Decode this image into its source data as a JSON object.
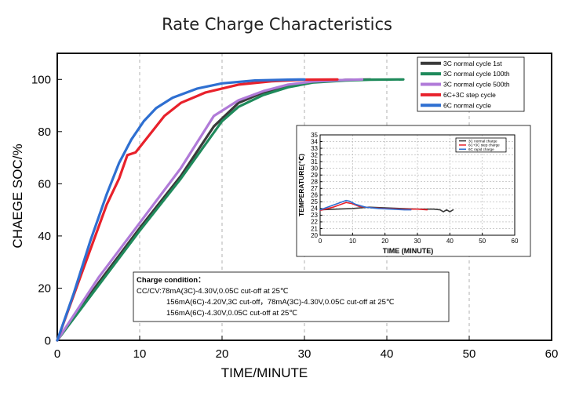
{
  "chart_data": [
    {
      "type": "line",
      "title": "Rate Charge Characteristics",
      "xlabel": "TIME/MINUTE",
      "ylabel": "CHAEGE SOC/%",
      "xlim": [
        0,
        60
      ],
      "ylim": [
        0,
        110
      ],
      "xticks": [
        0,
        10,
        20,
        30,
        40,
        50,
        60
      ],
      "yticks": [
        0,
        20,
        40,
        60,
        80,
        100
      ],
      "grid": "dashed",
      "legend_position": "top-right",
      "series": [
        {
          "name": "3C normal cycle 1st",
          "color": "#3a3a3a",
          "x": [
            0,
            5,
            10,
            15,
            19,
            22,
            25,
            28,
            31,
            35,
            38
          ],
          "y": [
            0,
            22,
            43,
            63,
            82,
            91,
            95,
            97.5,
            99,
            99.8,
            100
          ]
        },
        {
          "name": "3C normal cycle 100th",
          "color": "#1f8a5b",
          "x": [
            0,
            5,
            10,
            15,
            20,
            22,
            25,
            28,
            31,
            35,
            38,
            42
          ],
          "y": [
            0,
            21,
            42,
            62,
            84,
            89.5,
            94,
            97,
            98.8,
            99.6,
            99.9,
            100
          ]
        },
        {
          "name": "3C normal cycle 500th",
          "color": "#b07ad8",
          "x": [
            0,
            5,
            10,
            15,
            19,
            22,
            25,
            28,
            31,
            35,
            37
          ],
          "y": [
            0,
            24,
            45,
            66,
            86,
            92,
            95.5,
            98,
            99.2,
            99.8,
            100
          ]
        },
        {
          "name": "6C+3C step cycle",
          "color": "#e8212b",
          "x": [
            0,
            3,
            6,
            7.5,
            8.5,
            9.5,
            11,
            13,
            15,
            18,
            22,
            26,
            30,
            34
          ],
          "y": [
            0,
            26,
            52,
            62,
            71,
            72,
            78,
            86,
            91,
            95,
            98,
            99.3,
            99.9,
            100
          ]
        },
        {
          "name": "6C normal cycle",
          "color": "#2e6fd1",
          "x": [
            0,
            2,
            4,
            6,
            7.5,
            9,
            10.5,
            12,
            14,
            17,
            20,
            24,
            28,
            30
          ],
          "y": [
            0,
            18,
            38,
            56,
            68,
            77,
            84,
            89,
            93,
            96.5,
            98.5,
            99.6,
            99.9,
            100
          ]
        }
      ],
      "annotation": {
        "heading": "Charge condition：",
        "lines": [
          "CC/CV:78mA(3C)-4.30V,0.05C cut-off at 25℃",
          "156mA(6C)-4.20V,3C cut-off，78mA(3C)-4.30V,0.05C cut-off at 25℃",
          "156mA(6C)-4.30V,0.05C cut-off at 25℃"
        ]
      }
    },
    {
      "type": "line",
      "title": "",
      "xlabel": "TIME (MINUTE)",
      "ylabel": "TEMPERATURE(℃)",
      "xlim": [
        0,
        60
      ],
      "ylim": [
        20,
        35
      ],
      "xticks": [
        0,
        10,
        20,
        30,
        40,
        50,
        60
      ],
      "yticks": [
        20,
        21,
        22,
        23,
        24,
        25,
        26,
        27,
        28,
        29,
        30,
        31,
        32,
        33,
        34,
        35
      ],
      "grid": "dashed",
      "legend_position": "top-left",
      "series": [
        {
          "name": "3C normal charge",
          "color": "#3a3a3a",
          "x": [
            0,
            5,
            10,
            15,
            20,
            25,
            30,
            35,
            37,
            38,
            39,
            40,
            41
          ],
          "y": [
            23.8,
            23.9,
            24.0,
            24.2,
            24.1,
            24.0,
            23.9,
            23.9,
            23.8,
            23.5,
            23.8,
            23.5,
            23.8
          ]
        },
        {
          "name": "6C+3C step charge",
          "color": "#e8212b",
          "x": [
            0,
            4,
            8,
            10,
            12,
            16,
            20,
            25,
            30,
            33
          ],
          "y": [
            23.7,
            24.2,
            24.9,
            24.7,
            24.3,
            24.1,
            24.0,
            23.9,
            23.9,
            23.8
          ]
        },
        {
          "name": "6C rapid charge",
          "color": "#2e6fd1",
          "x": [
            0,
            4,
            8,
            9,
            11,
            14,
            18,
            22,
            26,
            28
          ],
          "y": [
            23.8,
            24.5,
            25.2,
            25.1,
            24.6,
            24.2,
            24.0,
            23.9,
            23.8,
            23.8
          ]
        }
      ]
    }
  ]
}
